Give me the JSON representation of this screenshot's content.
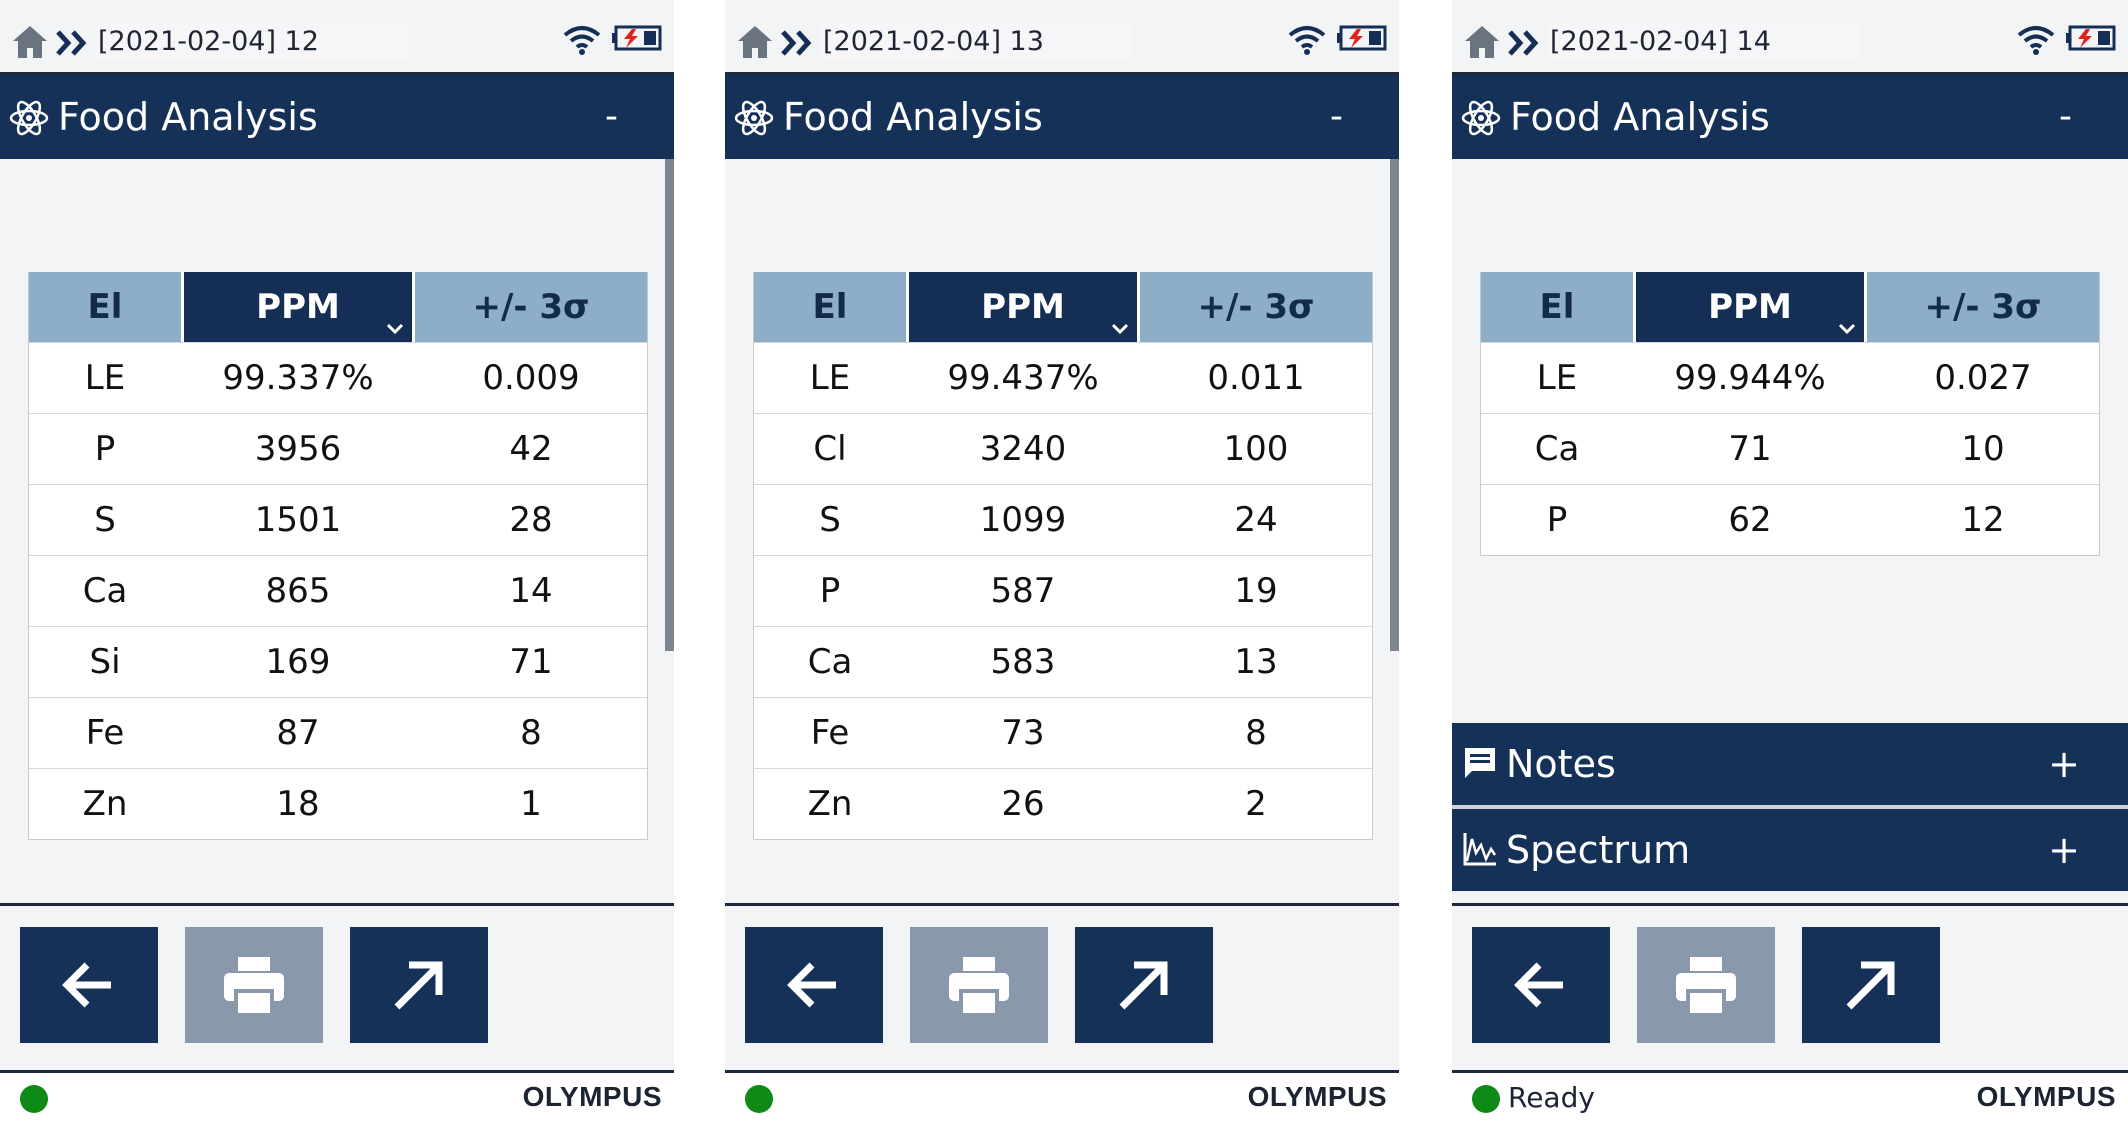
{
  "screens": [
    {
      "breadcrumb": "[2021-02-04] 12",
      "title": "Food Analysis",
      "collapse_symbol": "-",
      "columns": [
        "El",
        "PPM",
        "+/- 3σ"
      ],
      "rows": [
        {
          "el": "LE",
          "ppm": "99.337%",
          "err": "0.009"
        },
        {
          "el": "P",
          "ppm": "3956",
          "err": "42"
        },
        {
          "el": "S",
          "ppm": "1501",
          "err": "28"
        },
        {
          "el": "Ca",
          "ppm": "865",
          "err": "14"
        },
        {
          "el": "Si",
          "ppm": "169",
          "err": "71"
        },
        {
          "el": "Fe",
          "ppm": "87",
          "err": "8"
        },
        {
          "el": "Zn",
          "ppm": "18",
          "err": "1"
        }
      ],
      "status_text": "",
      "brand": "OLYMPUS"
    },
    {
      "breadcrumb": "[2021-02-04] 13",
      "title": "Food Analysis",
      "collapse_symbol": "-",
      "columns": [
        "El",
        "PPM",
        "+/- 3σ"
      ],
      "rows": [
        {
          "el": "LE",
          "ppm": "99.437%",
          "err": "0.011"
        },
        {
          "el": "Cl",
          "ppm": "3240",
          "err": "100"
        },
        {
          "el": "S",
          "ppm": "1099",
          "err": "24"
        },
        {
          "el": "P",
          "ppm": "587",
          "err": "19"
        },
        {
          "el": "Ca",
          "ppm": "583",
          "err": "13"
        },
        {
          "el": "Fe",
          "ppm": "73",
          "err": "8"
        },
        {
          "el": "Zn",
          "ppm": "26",
          "err": "2"
        }
      ],
      "status_text": "",
      "brand": "OLYMPUS"
    },
    {
      "breadcrumb": "[2021-02-04] 14",
      "title": "Food Analysis",
      "collapse_symbol": "-",
      "columns": [
        "El",
        "PPM",
        "+/- 3σ"
      ],
      "rows": [
        {
          "el": "LE",
          "ppm": "99.944%",
          "err": "0.027"
        },
        {
          "el": "Ca",
          "ppm": "71",
          "err": "10"
        },
        {
          "el": "P",
          "ppm": "62",
          "err": "12"
        }
      ],
      "sections": [
        {
          "label": "Notes",
          "icon": "notes-icon",
          "symbol": "+"
        },
        {
          "label": "Spectrum",
          "icon": "spectrum-icon",
          "symbol": "+"
        }
      ],
      "status_text": "Ready",
      "brand": "OLYMPUS"
    }
  ],
  "icons": {
    "home": "home-icon",
    "breadcrumb_separator": "double-chevron-icon",
    "wifi": "wifi-icon",
    "battery": "battery-charging-icon",
    "app": "atom-icon",
    "sort": "chevron-down-icon",
    "back": "arrow-left-icon",
    "print": "printer-icon",
    "export": "arrow-up-right-icon",
    "status": "status-led"
  },
  "colors": {
    "navy": "#163158",
    "header_light": "#8eadc7",
    "disabled": "#8a98ab",
    "status_ok": "#0e8a16",
    "battery_alert": "#e0221b"
  }
}
